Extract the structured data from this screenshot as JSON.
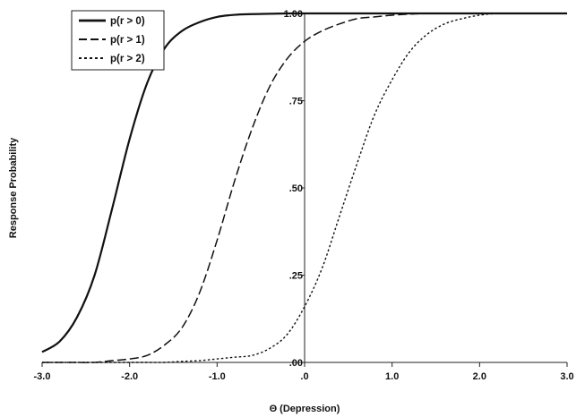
{
  "chart_data": {
    "type": "line",
    "xlabel": "Θ (Depression)",
    "ylabel": "Response Probability",
    "xlim": [
      -3.0,
      3.0
    ],
    "ylim": [
      0.0,
      1.0
    ],
    "x_ticks": [
      -3.0,
      -2.0,
      -1.0,
      0.0,
      1.0,
      2.0,
      3.0
    ],
    "x_tick_labels": [
      "-3.0",
      "-2.0",
      "-1.0",
      ".0",
      "1.0",
      "2.0",
      "3.0"
    ],
    "y_ticks": [
      0.0,
      0.25,
      0.5,
      0.75,
      1.0
    ],
    "y_tick_labels": [
      ".00",
      ".25",
      ".50",
      ".75",
      "1.00"
    ],
    "grid": false,
    "legend_position": "top-left",
    "x": [
      -3.0,
      -2.8,
      -2.6,
      -2.4,
      -2.2,
      -2.0,
      -1.8,
      -1.6,
      -1.4,
      -1.2,
      -1.0,
      -0.8,
      -0.6,
      -0.4,
      -0.2,
      0.0,
      0.2,
      0.4,
      0.6,
      0.8,
      1.0,
      1.2,
      1.4,
      1.6,
      1.8,
      2.0,
      2.2,
      2.4,
      2.6,
      2.8,
      3.0
    ],
    "series": [
      {
        "name": "p(r > 0)",
        "style": "solid",
        "values": [
          0.03,
          0.06,
          0.13,
          0.25,
          0.44,
          0.64,
          0.8,
          0.9,
          0.95,
          0.975,
          0.99,
          0.996,
          0.998,
          0.999,
          1.0,
          1.0,
          1.0,
          1.0,
          1.0,
          1.0,
          1.0,
          1.0,
          1.0,
          1.0,
          1.0,
          1.0,
          1.0,
          1.0,
          1.0,
          1.0,
          1.0
        ]
      },
      {
        "name": "p(r > 1)",
        "style": "dashed",
        "values": [
          0.0,
          0.0,
          0.0,
          0.0,
          0.005,
          0.01,
          0.02,
          0.05,
          0.1,
          0.2,
          0.35,
          0.52,
          0.67,
          0.79,
          0.87,
          0.92,
          0.95,
          0.97,
          0.985,
          0.99,
          0.995,
          0.998,
          1.0,
          1.0,
          1.0,
          1.0,
          1.0,
          1.0,
          1.0,
          1.0,
          1.0
        ]
      },
      {
        "name": "p(r > 2)",
        "style": "dotted",
        "values": [
          0.0,
          0.0,
          0.0,
          0.0,
          0.0,
          0.0,
          0.0,
          0.0,
          0.003,
          0.005,
          0.01,
          0.015,
          0.02,
          0.04,
          0.08,
          0.16,
          0.27,
          0.42,
          0.57,
          0.71,
          0.81,
          0.89,
          0.94,
          0.97,
          0.985,
          0.995,
          1.0,
          1.0,
          1.0,
          1.0,
          1.0
        ]
      }
    ]
  }
}
